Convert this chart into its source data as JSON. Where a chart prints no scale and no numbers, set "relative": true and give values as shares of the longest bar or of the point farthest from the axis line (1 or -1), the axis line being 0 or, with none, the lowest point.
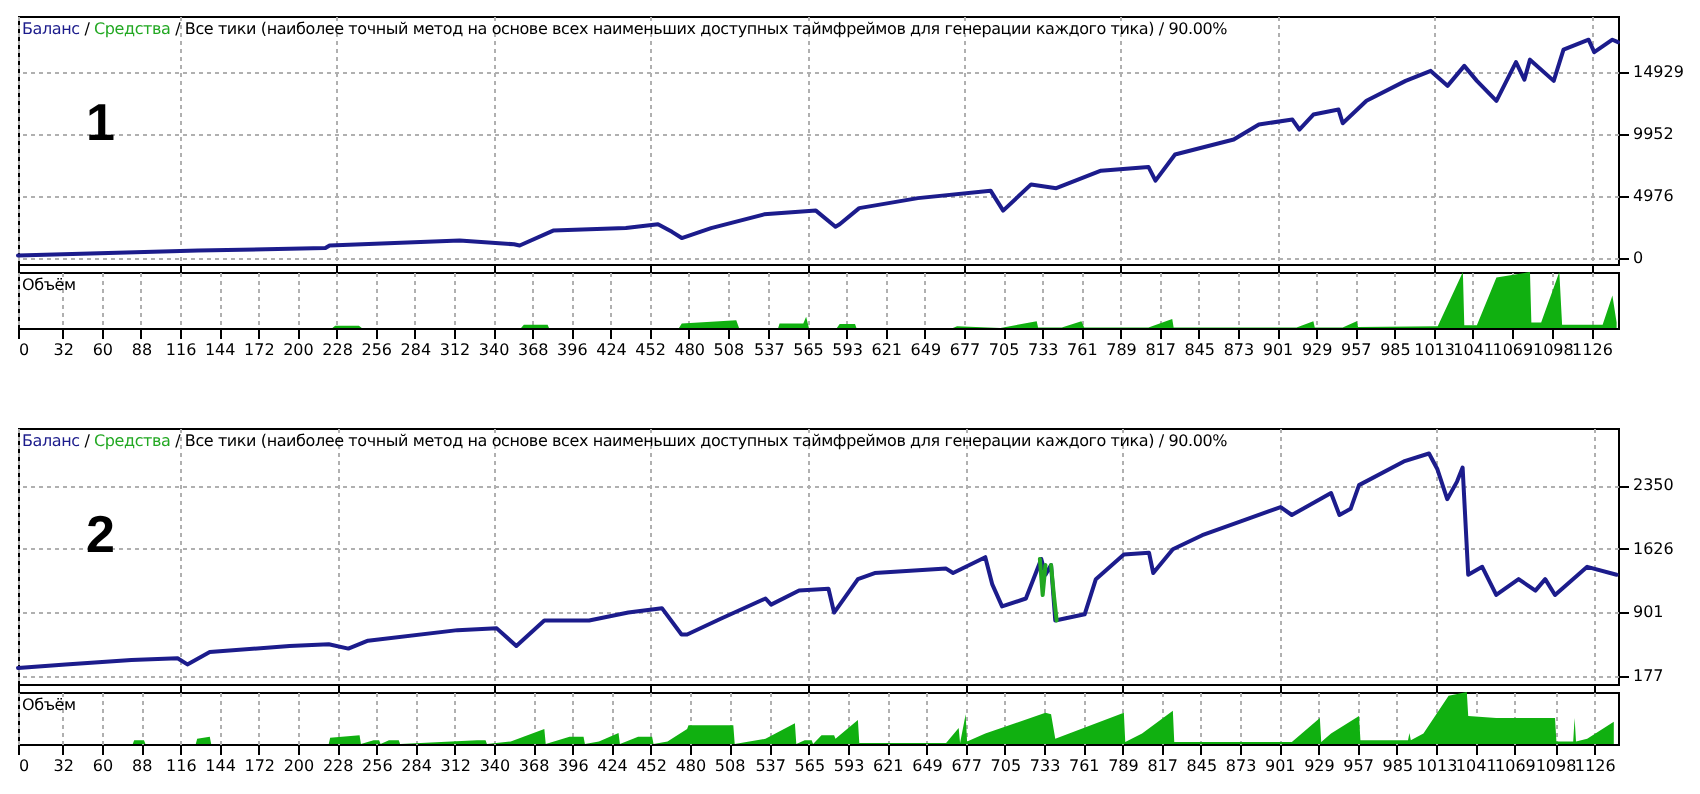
{
  "chart_data": [
    {
      "type": "line",
      "title": "/ Все тики (наиболее точный метод на основе всех наименьших доступных таймфреймов для генерации каждого тика) / 90.00%",
      "legend": "top left",
      "grid": true,
      "tick_labels": "y",
      "annotations": [
        "1",
        "/"
      ],
      "xlim": [
        0,
        1145
      ],
      "xticks": [
        0,
        32,
        60,
        88,
        116,
        144,
        172,
        200,
        228,
        256,
        284,
        312,
        340,
        368,
        396,
        424,
        452,
        480,
        508,
        537,
        565,
        593,
        621,
        649,
        677,
        705,
        733,
        761,
        789,
        817,
        845,
        873,
        901,
        929,
        957,
        985,
        1013,
        1041,
        1069,
        1098,
        1126
      ],
      "ylim": [
        -480,
        19400
      ],
      "yticks": [
        0,
        4976,
        9952,
        14929
      ],
      "series": [
        {
          "name": "Баланс",
          "color": "#1c1c8c",
          "x": [
            0,
            129,
            220,
            223,
            316,
            355,
            359,
            383,
            435,
            458,
            468,
            475,
            496,
            534,
            571,
            585,
            588,
            602,
            644,
            696,
            705,
            725,
            743,
            775,
            809,
            814,
            828,
            870,
            888,
            912,
            917,
            927,
            945,
            948,
            965,
            993,
            1011,
            1023,
            1035,
            1044,
            1058,
            1072,
            1078,
            1082,
            1099,
            1106,
            1124,
            1128,
            1141,
            1145
          ],
          "values": [
            200,
            600,
            800,
            1000,
            1400,
            1100,
            1000,
            2200,
            2400,
            2700,
            2100,
            1600,
            2400,
            3500,
            3800,
            2500,
            2700,
            4000,
            4800,
            5400,
            3800,
            5900,
            5600,
            7000,
            7300,
            6200,
            8300,
            9500,
            10700,
            11100,
            10300,
            11500,
            11900,
            10800,
            12600,
            14200,
            15000,
            13800,
            15400,
            14200,
            12600,
            15700,
            14300,
            15900,
            14200,
            16700,
            17500,
            16500,
            17500,
            17300
          ]
        },
        {
          "name": "Средства",
          "color": "#22a822"
        }
      ]
    },
    {
      "type": "area",
      "title": "Объём",
      "relative": true,
      "grid": "x",
      "tick_labels": "x",
      "xlim": [
        0,
        1145
      ],
      "xticks": [
        0,
        32,
        60,
        88,
        116,
        144,
        172,
        200,
        228,
        256,
        284,
        312,
        340,
        368,
        396,
        424,
        452,
        480,
        508,
        537,
        565,
        593,
        621,
        649,
        677,
        705,
        733,
        761,
        789,
        817,
        845,
        873,
        901,
        929,
        957,
        985,
        1013,
        1041,
        1069,
        1098,
        1126
      ],
      "series": [
        {
          "color": "#10b010",
          "x": [
            0,
            225,
            227,
            244,
            246,
            360,
            362,
            379,
            380,
            473,
            475,
            514,
            516,
            544,
            545,
            562,
            564,
            566,
            586,
            588,
            599,
            600,
            669,
            672,
            703,
            705,
            729,
            730,
            747,
            761,
            763,
            809,
            826,
            827,
            915,
            927,
            928,
            948,
            958,
            959,
            1016,
            1034,
            1035,
            1044,
            1058,
            1082,
            1083,
            1090,
            1103,
            1105,
            1134,
            1141,
            1144
          ],
          "values": [
            0,
            0,
            0.04,
            0.04,
            0,
            0,
            0.06,
            0.06,
            0,
            0,
            0.08,
            0.14,
            0,
            0,
            0.08,
            0.08,
            0.2,
            0,
            0,
            0.07,
            0.07,
            0,
            0,
            0.03,
            0,
            0.01,
            0.12,
            0.01,
            0.01,
            0.12,
            0.01,
            0.01,
            0.16,
            0.01,
            0.01,
            0.12,
            0.01,
            0.01,
            0.12,
            0.02,
            0.03,
            1,
            0.05,
            0.05,
            0.9,
            1,
            0.1,
            0.1,
            1,
            0.06,
            0.06,
            0.58,
            0.1
          ]
        }
      ]
    },
    {
      "type": "line",
      "title": "/ Все тики (наиболее точный метод на основе всех наименьших доступных таймфреймов для генерации каждого тика) / 90.00%",
      "legend": "top left",
      "grid": true,
      "tick_labels": "y",
      "annotations": [
        "2",
        "/"
      ],
      "xlim": [
        0,
        1143
      ],
      "xticks": [
        0,
        32,
        60,
        88,
        116,
        144,
        172,
        200,
        228,
        256,
        284,
        312,
        340,
        368,
        396,
        424,
        452,
        480,
        508,
        537,
        565,
        593,
        621,
        649,
        677,
        705,
        733,
        761,
        789,
        817,
        845,
        873,
        901,
        929,
        957,
        985,
        1013,
        1041,
        1069,
        1098,
        1126
      ],
      "ylim": [
        87,
        3000
      ],
      "yticks": [
        177,
        901,
        1626,
        2350
      ],
      "series": [
        {
          "name": "Баланс",
          "color": "#1c1c8c",
          "x": [
            0,
            34,
            81,
            114,
            121,
            137,
            194,
            222,
            236,
            250,
            314,
            342,
            356,
            376,
            408,
            436,
            460,
            474,
            478,
            502,
            534,
            538,
            558,
            579,
            583,
            600,
            612,
            663,
            668,
            691,
            696,
            703,
            720,
            731,
            734,
            738,
            741,
            762,
            770,
            790,
            808,
            811,
            825,
            846,
            874,
            902,
            910,
            938,
            944,
            952,
            958,
            990,
            1008,
            1014,
            1021,
            1028,
            1032,
            1036,
            1046,
            1056,
            1072,
            1084,
            1091,
            1098,
            1121,
            1142
          ],
          "values": [
            270,
            310,
            360,
            380,
            310,
            450,
            520,
            540,
            490,
            580,
            700,
            720,
            520,
            810,
            810,
            900,
            950,
            650,
            650,
            830,
            1060,
            990,
            1150,
            1170,
            900,
            1280,
            1350,
            1400,
            1350,
            1530,
            1220,
            970,
            1060,
            1510,
            1330,
            1440,
            810,
            880,
            1280,
            1560,
            1580,
            1350,
            1620,
            1780,
            1940,
            2100,
            2010,
            2260,
            2010,
            2080,
            2350,
            2620,
            2710,
            2530,
            2190,
            2390,
            2550,
            1330,
            1420,
            1100,
            1280,
            1150,
            1280,
            1100,
            1420,
            1330
          ]
        },
        {
          "name": "Средства",
          "color": "#22a822",
          "x": [
            730,
            732,
            734,
            736,
            738,
            740,
            742
          ],
          "values": [
            1510,
            1100,
            1440,
            null,
            1440,
            1100,
            810
          ]
        }
      ]
    },
    {
      "type": "area",
      "title": "Объём",
      "relative": true,
      "grid": "x",
      "tick_labels": "x",
      "xlim": [
        0,
        1143
      ],
      "xticks": [
        0,
        32,
        60,
        88,
        116,
        144,
        172,
        200,
        228,
        256,
        284,
        312,
        340,
        368,
        396,
        424,
        452,
        480,
        508,
        537,
        565,
        593,
        621,
        649,
        677,
        705,
        733,
        761,
        789,
        817,
        845,
        873,
        901,
        929,
        957,
        985,
        1013,
        1041,
        1069,
        1098,
        1126
      ],
      "series": [
        {
          "color": "#10b010",
          "x": [
            0,
            82,
            83,
            90,
            91,
            127,
            128,
            137,
            138,
            222,
            223,
            244,
            245,
            254,
            258,
            259,
            265,
            272,
            273,
            328,
            334,
            335,
            352,
            376,
            377,
            394,
            404,
            405,
            415,
            429,
            430,
            443,
            453,
            454,
            464,
            478,
            479,
            511,
            512,
            534,
            555,
            556,
            562,
            567,
            568,
            574,
            583,
            584,
            600,
            601,
            663,
            672,
            673,
            677,
            678,
            691,
            734,
            738,
            741,
            790,
            791,
            803,
            825,
            826,
            910,
            930,
            931,
            938,
            958,
            959,
            993,
            994,
            995,
            1004,
            1022,
            1035,
            1036,
            1056,
            1098,
            1099,
            1111,
            1112,
            1113,
            1121,
            1140
          ],
          "values": [
            0,
            0,
            0.07,
            0.07,
            0,
            0,
            0.1,
            0.14,
            0,
            0,
            0.12,
            0.17,
            0,
            0.07,
            0.07,
            0,
            0.07,
            0.07,
            0,
            0.07,
            0.07,
            0,
            0.05,
            0.29,
            0,
            0.14,
            0.14,
            0,
            0.05,
            0.21,
            0,
            0.14,
            0.14,
            0,
            0.05,
            0.29,
            0.36,
            0.36,
            0,
            0.1,
            0.4,
            0,
            0.07,
            0.07,
            0,
            0.17,
            0.17,
            0.1,
            0.46,
            0.02,
            0.02,
            0.31,
            0.02,
            0.57,
            0.05,
            0.2,
            0.6,
            0.57,
            0.1,
            0.6,
            0.04,
            0.2,
            0.64,
            0.04,
            0.04,
            0.5,
            0.04,
            0.2,
            0.54,
            0.07,
            0.07,
            0.21,
            0.07,
            0.2,
            0.93,
            1,
            0.54,
            0.5,
            0.5,
            0.05,
            0.05,
            0.5,
            0.05,
            0.1,
            0.43
          ]
        }
      ]
    }
  ]
}
